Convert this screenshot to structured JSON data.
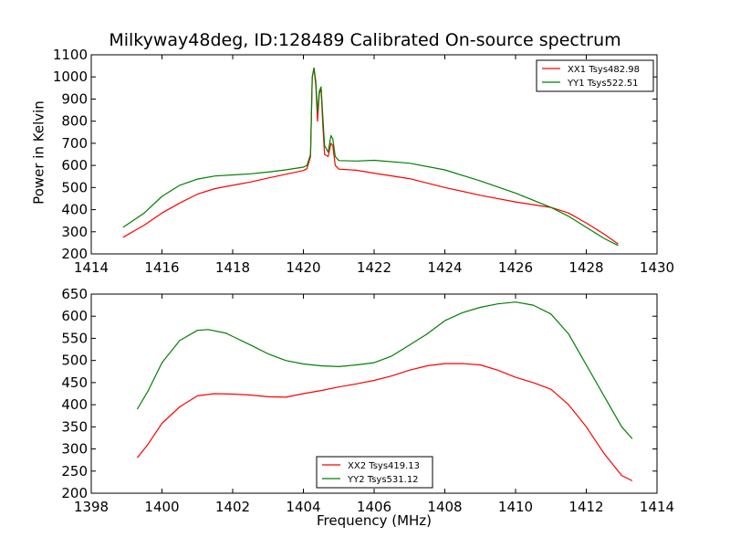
{
  "chart_data": [
    {
      "type": "line",
      "title": "Milkyway48deg, ID:128489 Calibrated On-source spectrum",
      "ylabel": "Power in Kelvin",
      "xlabel": "",
      "xlim": [
        1414,
        1430
      ],
      "ylim": [
        200,
        1100
      ],
      "xticks": [
        "1414",
        "1416",
        "1418",
        "1420",
        "1422",
        "1424",
        "1426",
        "1428",
        "1430"
      ],
      "yticks": [
        "200",
        "300",
        "400",
        "500",
        "600",
        "700",
        "800",
        "900",
        "1000",
        "1100"
      ],
      "legend": "top-right",
      "series": [
        {
          "name": "XX1 Tsys482.98",
          "color": "#ff0000",
          "points": [
            [
              1414.9,
              275
            ],
            [
              1415.5,
              330
            ],
            [
              1416,
              385
            ],
            [
              1416.5,
              430
            ],
            [
              1417,
              470
            ],
            [
              1417.5,
              495
            ],
            [
              1418,
              510
            ],
            [
              1418.5,
              525
            ],
            [
              1419,
              543
            ],
            [
              1419.5,
              560
            ],
            [
              1420,
              577
            ],
            [
              1420.1,
              585
            ],
            [
              1420.2,
              640
            ],
            [
              1420.25,
              1000
            ],
            [
              1420.3,
              1040
            ],
            [
              1420.35,
              960
            ],
            [
              1420.4,
              800
            ],
            [
              1420.45,
              925
            ],
            [
              1420.5,
              945
            ],
            [
              1420.55,
              780
            ],
            [
              1420.6,
              650
            ],
            [
              1420.7,
              640
            ],
            [
              1420.78,
              700
            ],
            [
              1420.83,
              690
            ],
            [
              1420.9,
              600
            ],
            [
              1421,
              583
            ],
            [
              1421.5,
              578
            ],
            [
              1422,
              565
            ],
            [
              1423,
              540
            ],
            [
              1424,
              500
            ],
            [
              1425,
              465
            ],
            [
              1426,
              435
            ],
            [
              1427,
              410
            ],
            [
              1427.5,
              385
            ],
            [
              1428,
              340
            ],
            [
              1428.5,
              290
            ],
            [
              1428.9,
              245
            ]
          ]
        },
        {
          "name": "YY1 Tsys522.51",
          "color": "#008000",
          "points": [
            [
              1414.9,
              320
            ],
            [
              1415.5,
              385
            ],
            [
              1416,
              460
            ],
            [
              1416.5,
              510
            ],
            [
              1417,
              538
            ],
            [
              1417.5,
              552
            ],
            [
              1418,
              557
            ],
            [
              1418.5,
              562
            ],
            [
              1419,
              570
            ],
            [
              1419.5,
              580
            ],
            [
              1420,
              592
            ],
            [
              1420.1,
              600
            ],
            [
              1420.2,
              650
            ],
            [
              1420.25,
              1000
            ],
            [
              1420.3,
              1040
            ],
            [
              1420.35,
              980
            ],
            [
              1420.4,
              840
            ],
            [
              1420.45,
              935
            ],
            [
              1420.5,
              955
            ],
            [
              1420.55,
              820
            ],
            [
              1420.6,
              690
            ],
            [
              1420.7,
              660
            ],
            [
              1420.78,
              735
            ],
            [
              1420.83,
              720
            ],
            [
              1420.9,
              640
            ],
            [
              1421,
              622
            ],
            [
              1421.5,
              620
            ],
            [
              1422,
              623
            ],
            [
              1423,
              610
            ],
            [
              1424,
              580
            ],
            [
              1425,
              530
            ],
            [
              1426,
              475
            ],
            [
              1427,
              410
            ],
            [
              1427.5,
              370
            ],
            [
              1428,
              320
            ],
            [
              1428.5,
              270
            ],
            [
              1428.9,
              238
            ]
          ]
        }
      ]
    },
    {
      "type": "line",
      "title": "",
      "xlabel": "Frequency (MHz)",
      "ylabel": "",
      "xlim": [
        1398,
        1414
      ],
      "ylim": [
        200,
        650
      ],
      "xticks": [
        "1398",
        "1400",
        "1402",
        "1404",
        "1406",
        "1408",
        "1410",
        "1412",
        "1414"
      ],
      "yticks": [
        "200",
        "250",
        "300",
        "350",
        "400",
        "450",
        "500",
        "550",
        "600",
        "650"
      ],
      "legend": "bottom-center",
      "series": [
        {
          "name": "XX2 Tsys419.13",
          "color": "#ff0000",
          "points": [
            [
              1399.3,
              280
            ],
            [
              1399.6,
              310
            ],
            [
              1400,
              358
            ],
            [
              1400.5,
              395
            ],
            [
              1401,
              420
            ],
            [
              1401.5,
              425
            ],
            [
              1402,
              424
            ],
            [
              1402.5,
              422
            ],
            [
              1403,
              418
            ],
            [
              1403.5,
              417
            ],
            [
              1404,
              425
            ],
            [
              1404.5,
              432
            ],
            [
              1405,
              440
            ],
            [
              1405.5,
              447
            ],
            [
              1406,
              455
            ],
            [
              1406.5,
              465
            ],
            [
              1407,
              478
            ],
            [
              1407.5,
              488
            ],
            [
              1408,
              493
            ],
            [
              1408.5,
              493
            ],
            [
              1409,
              490
            ],
            [
              1409.5,
              478
            ],
            [
              1410,
              462
            ],
            [
              1410.5,
              450
            ],
            [
              1411,
              435
            ],
            [
              1411.5,
              400
            ],
            [
              1412,
              350
            ],
            [
              1412.5,
              290
            ],
            [
              1413,
              240
            ],
            [
              1413.3,
              228
            ]
          ]
        },
        {
          "name": "YY2 Tsys531.12",
          "color": "#008000",
          "points": [
            [
              1399.3,
              390
            ],
            [
              1399.6,
              430
            ],
            [
              1400,
              495
            ],
            [
              1400.5,
              545
            ],
            [
              1401,
              568
            ],
            [
              1401.3,
              570
            ],
            [
              1401.8,
              562
            ],
            [
              1402.5,
              535
            ],
            [
              1403,
              515
            ],
            [
              1403.5,
              500
            ],
            [
              1404,
              492
            ],
            [
              1404.5,
              488
            ],
            [
              1405,
              486
            ],
            [
              1405.5,
              490
            ],
            [
              1406,
              495
            ],
            [
              1406.5,
              510
            ],
            [
              1407,
              535
            ],
            [
              1407.5,
              560
            ],
            [
              1408,
              590
            ],
            [
              1408.5,
              608
            ],
            [
              1409,
              620
            ],
            [
              1409.5,
              628
            ],
            [
              1410,
              632
            ],
            [
              1410.5,
              625
            ],
            [
              1411,
              605
            ],
            [
              1411.5,
              560
            ],
            [
              1412,
              490
            ],
            [
              1412.5,
              420
            ],
            [
              1413,
              350
            ],
            [
              1413.3,
              323
            ]
          ]
        }
      ]
    }
  ]
}
